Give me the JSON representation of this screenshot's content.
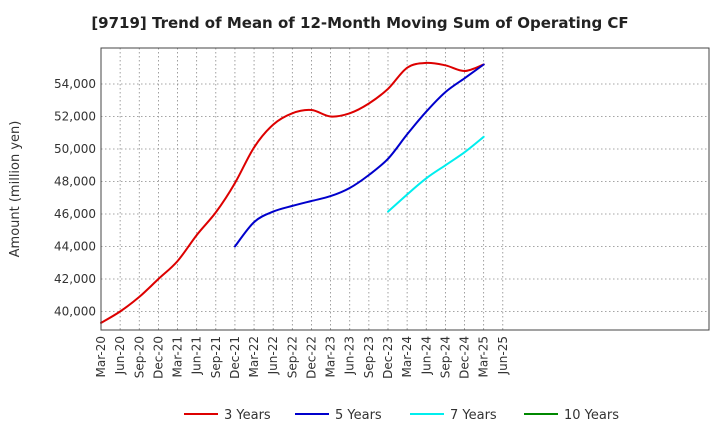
{
  "chart_data": {
    "type": "line",
    "title": "[9719]  Trend of Mean of 12-Month Moving Sum of Operating CF",
    "xlabel": "",
    "ylabel": "Amount (million yen)",
    "ylim": [
      39000,
      55800
    ],
    "grid": true,
    "legend_position": "bottom",
    "x_ticks": [
      "Mar-20",
      "Jun-20",
      "Sep-20",
      "Dec-20",
      "Mar-21",
      "Jun-21",
      "Sep-21",
      "Dec-21",
      "Mar-22",
      "Jun-22",
      "Sep-22",
      "Dec-22",
      "Mar-23",
      "Jun-23",
      "Sep-23",
      "Dec-23",
      "Mar-24",
      "Jun-24",
      "Sep-24",
      "Dec-24",
      "Mar-25",
      "Jun-25"
    ],
    "y_ticks": [
      40000,
      42000,
      44000,
      46000,
      48000,
      50000,
      52000,
      54000
    ],
    "y_tick_labels": [
      "40,000",
      "42,000",
      "44,000",
      "46,000",
      "48,000",
      "50,000",
      "52,000",
      "54,000"
    ],
    "series": [
      {
        "name": "3 Years",
        "color": "#dd0000",
        "x": [
          "Mar-20",
          "Jun-20",
          "Sep-20",
          "Dec-20",
          "Mar-21",
          "Jun-21",
          "Sep-21",
          "Dec-21",
          "Mar-22",
          "Jun-22",
          "Sep-22",
          "Dec-22",
          "Mar-23",
          "Jun-23",
          "Sep-23",
          "Dec-23",
          "Mar-24",
          "Jun-24",
          "Sep-24",
          "Dec-24",
          "Mar-25"
        ],
        "values": [
          39300,
          40000,
          40900,
          42000,
          43100,
          44700,
          46100,
          47900,
          50100,
          51500,
          52200,
          52400,
          52000,
          52200,
          52800,
          53700,
          55000,
          55300,
          55150,
          54800,
          55200
        ]
      },
      {
        "name": "5 Years",
        "color": "#0000cc",
        "x": [
          "Dec-21",
          "Mar-22",
          "Jun-22",
          "Sep-22",
          "Dec-22",
          "Mar-23",
          "Jun-23",
          "Sep-23",
          "Dec-23",
          "Mar-24",
          "Jun-24",
          "Sep-24",
          "Dec-24",
          "Mar-25"
        ],
        "values": [
          44000,
          45500,
          46150,
          46500,
          46800,
          47100,
          47600,
          48400,
          49400,
          50900,
          52300,
          53500,
          54350,
          55200
        ]
      },
      {
        "name": "7 Years",
        "color": "#00eeee",
        "x": [
          "Dec-23",
          "Mar-24",
          "Jun-24",
          "Sep-24",
          "Dec-24",
          "Mar-25"
        ],
        "values": [
          46150,
          47200,
          48200,
          49000,
          49800,
          50750
        ]
      },
      {
        "name": "10 Years",
        "color": "#008800",
        "x": [],
        "values": []
      }
    ]
  }
}
